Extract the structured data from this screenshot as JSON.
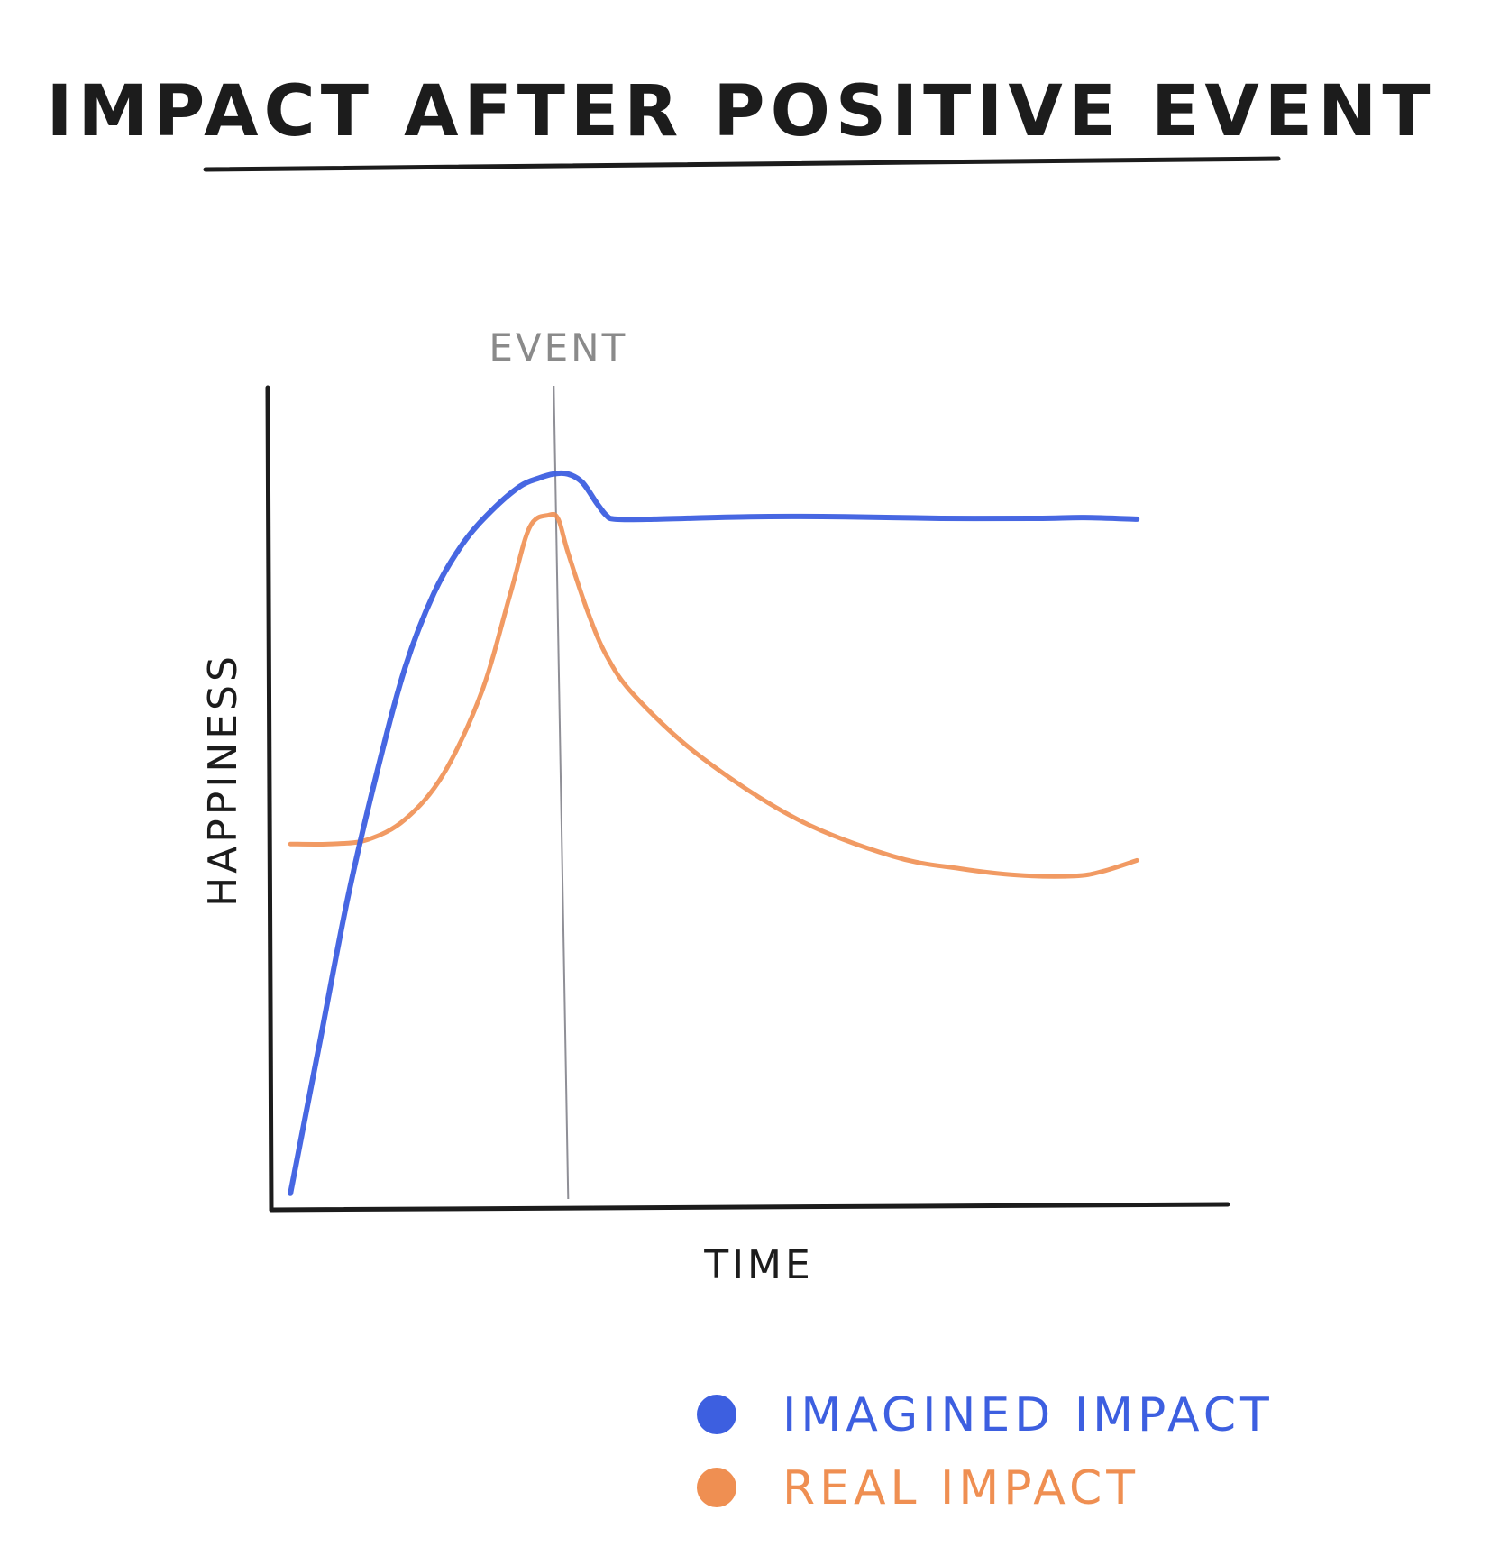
{
  "chart_data": {
    "type": "line",
    "title": "IMPACT AFTER POSITIVE EVENT",
    "xlabel": "TIME",
    "ylabel": "HAPPINESS",
    "xlim": [
      0,
      100
    ],
    "ylim": [
      0,
      100
    ],
    "grid": false,
    "annotations": [
      {
        "label": "EVENT",
        "x": 30,
        "style": "vertical-line"
      }
    ],
    "legend_position": "bottom-right",
    "series": [
      {
        "name": "IMAGINED IMPACT",
        "color": "#3d5fe0",
        "x": [
          2,
          5,
          8,
          11,
          14,
          17,
          20,
          23,
          26,
          28,
          29.5,
          31,
          32.5,
          34,
          35,
          36,
          40,
          50,
          60,
          70,
          80,
          85,
          90.5
        ],
        "y": [
          2,
          20,
          38,
          53,
          66,
          75,
          81,
          85,
          88,
          89,
          89.5,
          89.5,
          88.5,
          86,
          84.5,
          84,
          84,
          84.3,
          84.3,
          84.1,
          84.1,
          84.2,
          84.0
        ]
      },
      {
        "name": "REAL IMPACT",
        "color": "#ef8f52",
        "x": [
          2,
          6,
          10,
          14,
          18,
          22,
          25,
          27,
          29,
          30,
          31,
          33,
          35,
          38,
          45,
          55,
          65,
          72,
          78,
          84,
          87,
          90.5
        ],
        "y": [
          44.5,
          44.5,
          45,
          47.5,
          53,
          63,
          75,
          83,
          84.5,
          84,
          80,
          73,
          67.5,
          62.5,
          55,
          47.5,
          43,
          41.5,
          40.7,
          40.6,
          41.2,
          42.5
        ]
      }
    ]
  }
}
